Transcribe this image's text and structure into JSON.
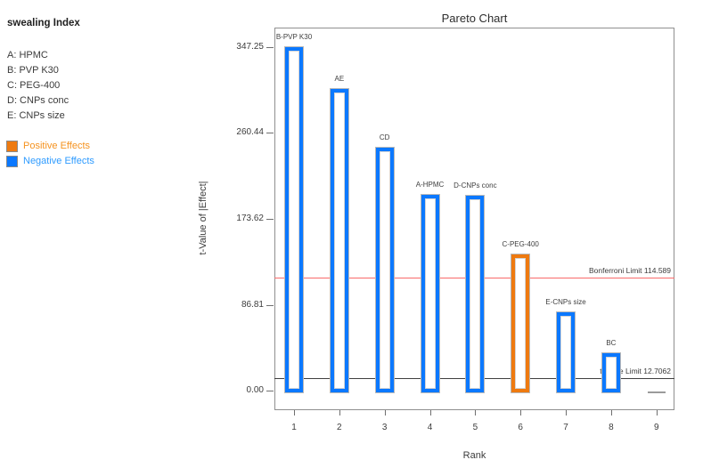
{
  "sidebar": {
    "title": "swealing Index",
    "factors": [
      "A: HPMC",
      "B: PVP K30",
      "C: PEG-400",
      "D: CNPs conc",
      "E: CNPs size"
    ],
    "legend": [
      {
        "label": "Positive Effects",
        "swatch_color": "#ee7a10",
        "text_color": "#f5921e"
      },
      {
        "label": "Negative Effects",
        "swatch_color": "#0b78ff",
        "text_color": "#2e9bff"
      }
    ]
  },
  "chart_data": {
    "type": "bar",
    "title": "Pareto Chart",
    "xlabel": "Rank",
    "ylabel": "t-Value of |Effect|",
    "ylim": [
      -20,
      367
    ],
    "grid": false,
    "yticks": [
      {
        "value": 0.0,
        "label": "0.00"
      },
      {
        "value": 86.81,
        "label": "86.81"
      },
      {
        "value": 173.62,
        "label": "173.62"
      },
      {
        "value": 260.44,
        "label": "260.44"
      },
      {
        "value": 347.25,
        "label": "347.25"
      }
    ],
    "bars": [
      {
        "rank": 1,
        "label": "B-PVP K30",
        "value": 347.25,
        "effect": "negative"
      },
      {
        "rank": 2,
        "label": "AE",
        "value": 305,
        "effect": "negative"
      },
      {
        "rank": 3,
        "label": "CD",
        "value": 246,
        "effect": "negative"
      },
      {
        "rank": 4,
        "label": "A-HPMC",
        "value": 198,
        "effect": "negative"
      },
      {
        "rank": 5,
        "label": "D-CNPs conc",
        "value": 197,
        "effect": "negative"
      },
      {
        "rank": 6,
        "label": "C-PEG-400",
        "value": 138,
        "effect": "positive"
      },
      {
        "rank": 7,
        "label": "E-CNPs size",
        "value": 79,
        "effect": "negative"
      },
      {
        "rank": 8,
        "label": "BC",
        "value": 38,
        "effect": "negative"
      },
      {
        "rank": 9,
        "label": "",
        "value": 0,
        "effect": "none"
      }
    ],
    "reference_lines": [
      {
        "label": "Bonferroni Limit 114.589",
        "value": 114.589,
        "color": "#f96a6a"
      },
      {
        "label": "t-Value Limit 12.7062",
        "value": 12.7062,
        "color": "#3f3f3f"
      }
    ],
    "legend_note": "orange = positive effects, blue = negative effects; rank 9 bar ~0 drawn as gray dash"
  },
  "colors": {
    "positive_bar": "#ee7a10",
    "negative_bar": "#0b78ff",
    "bar_outline": "#b9b9b9",
    "frame": "#8f8f8f",
    "bonferroni_line": "#f96a6a",
    "t_value_line": "#3f3f3f"
  }
}
